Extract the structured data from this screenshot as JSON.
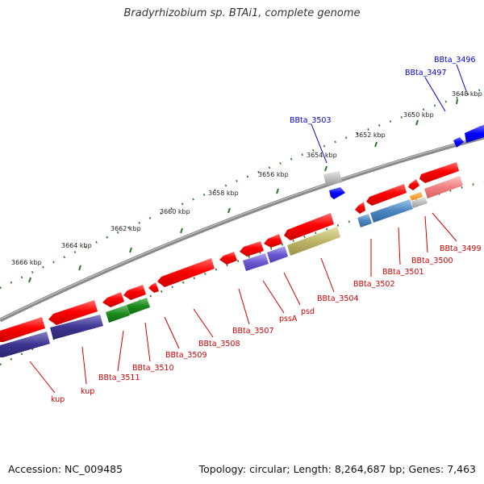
{
  "title": "Bradyrhizobium sp. BTAi1, complete genome",
  "footer": {
    "accession": "Accession: NC_009485",
    "topology": "Topology: circular; Length: 8,264,687 bp; Genes: 7,463"
  },
  "ticks": [
    {
      "label": "3648 kbp"
    },
    {
      "label": "3650 kbp"
    },
    {
      "label": "3652 kbp"
    },
    {
      "label": "3654 kbp"
    },
    {
      "label": "3656 kbp"
    },
    {
      "label": "3658 kbp"
    },
    {
      "label": "3660 kbp"
    },
    {
      "label": "3662 kbp"
    },
    {
      "label": "3664 kbp"
    },
    {
      "label": "3666 kbp"
    }
  ],
  "colors": {
    "outer_label": "#0000cc",
    "inner_label": "#cc0000",
    "backbone": "#888888",
    "tick": "#2a7a2a"
  },
  "genes": {
    "outer": [
      {
        "name": "BBta_3496",
        "color": "#0000ff"
      },
      {
        "name": "BBta_3497",
        "color": "#0000ff"
      },
      {
        "name": "BBta_3503",
        "color": "#0000ff"
      }
    ],
    "inner": [
      {
        "name": "BBta_3499"
      },
      {
        "name": "BBta_3500"
      },
      {
        "name": "BBta_3501"
      },
      {
        "name": "BBta_3502"
      },
      {
        "name": "BBta_3504"
      },
      {
        "name": "psd"
      },
      {
        "name": "pssA"
      },
      {
        "name": "BBta_3507"
      },
      {
        "name": "BBta_3508"
      },
      {
        "name": "BBta_3509"
      },
      {
        "name": "BBta_3510"
      },
      {
        "name": "BBta_3511"
      },
      {
        "name": "kup"
      },
      {
        "name": "kup"
      }
    ]
  }
}
